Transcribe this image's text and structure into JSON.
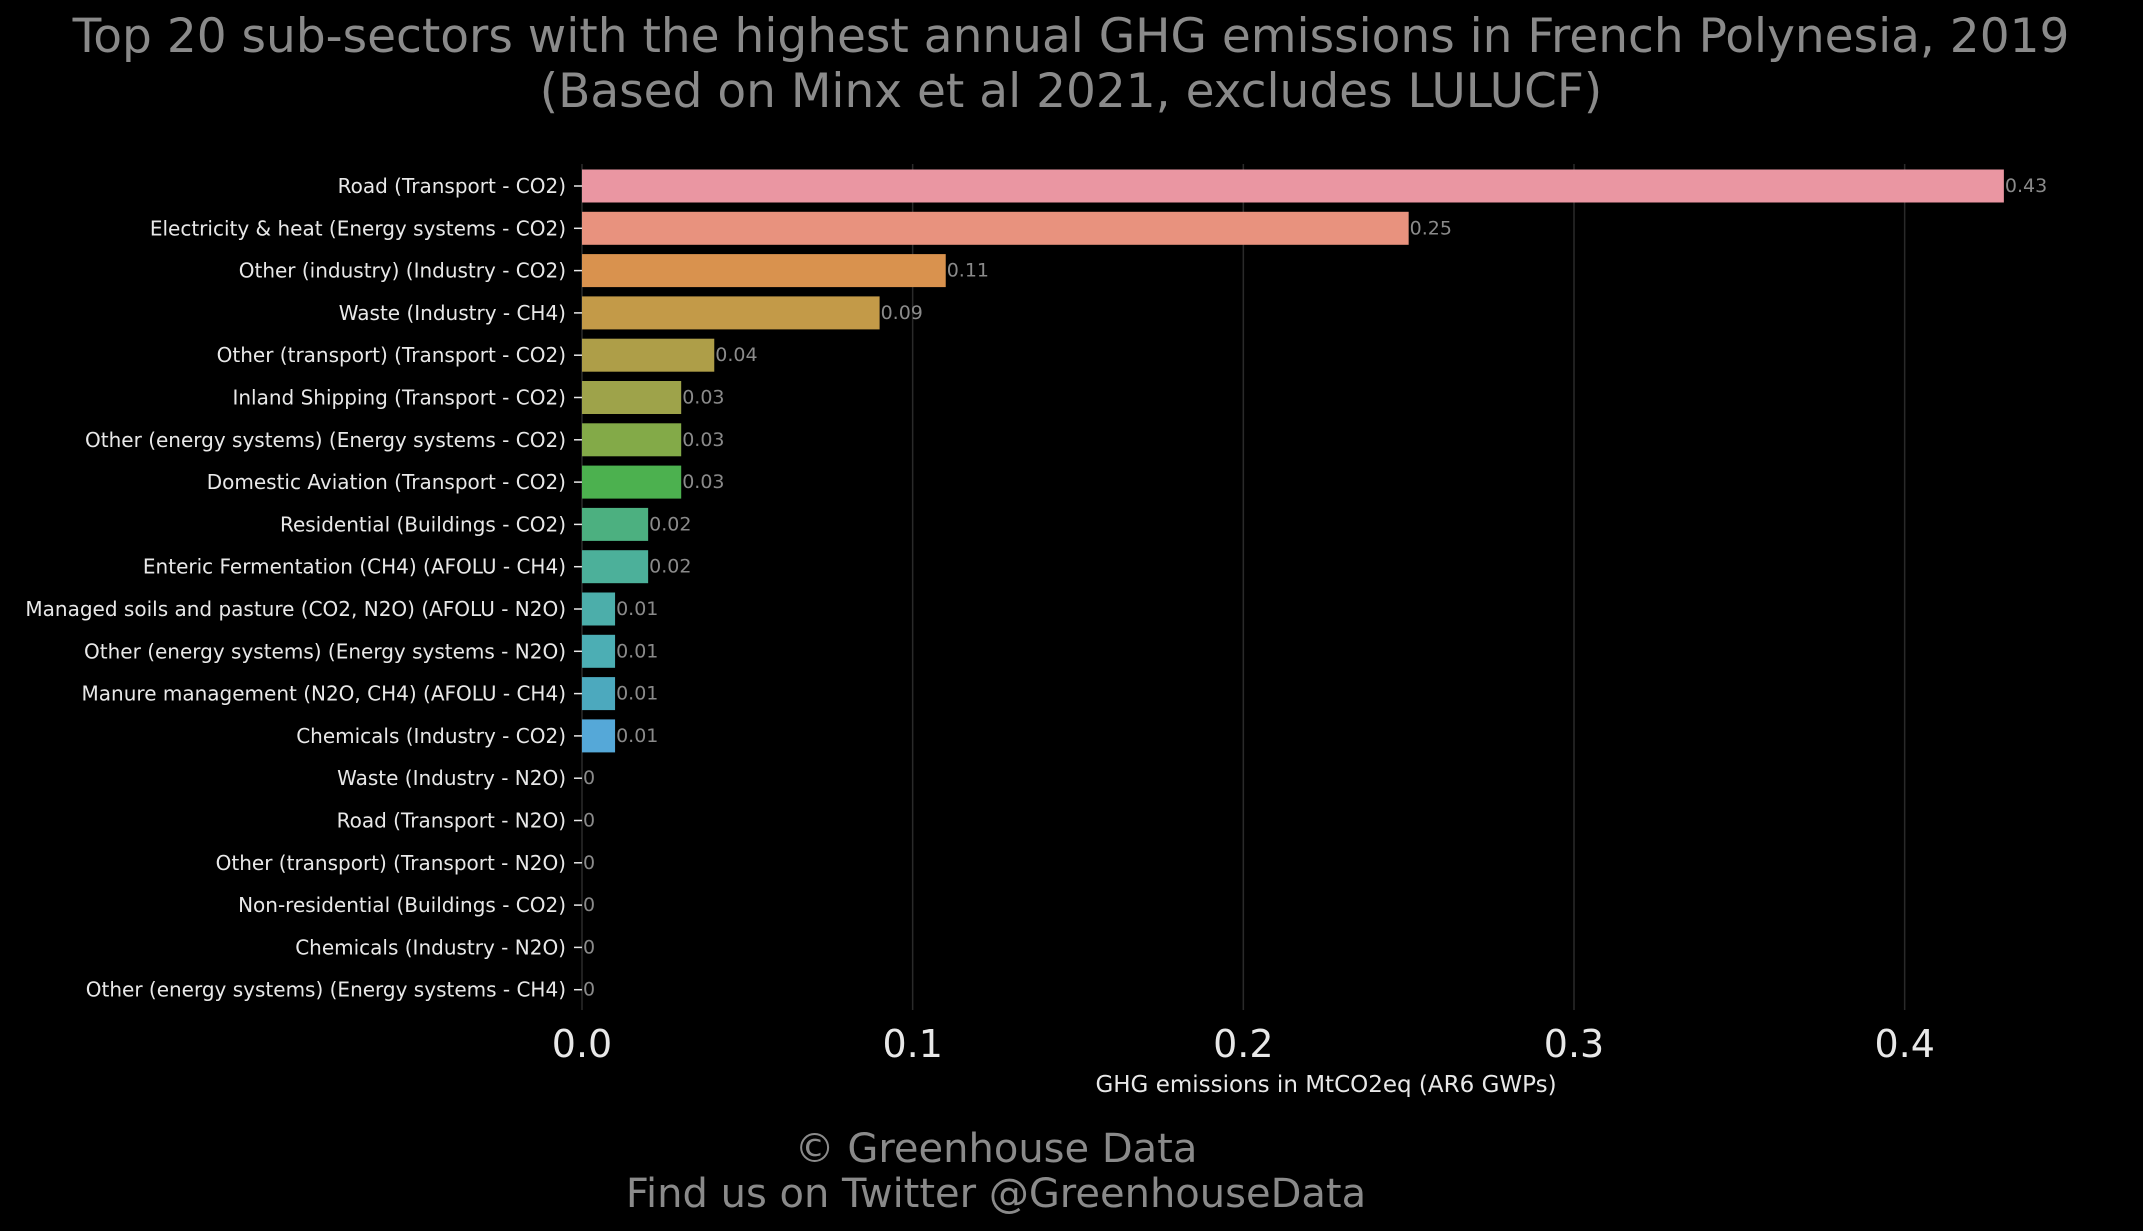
{
  "chart_data": {
    "type": "bar",
    "orientation": "horizontal",
    "title": "Top 20 sub-sectors with the highest annual GHG emissions in French Polynesia, 2019",
    "subtitle": "(Based on Minx et al 2021, excludes LULUCF)",
    "xlabel": "GHG emissions in MtCO2eq (AR6 GWPs)",
    "ylabel": "",
    "xlim": [
      0,
      0.45
    ],
    "xticks": [
      0.0,
      0.1,
      0.2,
      0.3,
      0.4
    ],
    "xtick_labels": [
      "0.0",
      "0.1",
      "0.2",
      "0.3",
      "0.4"
    ],
    "grid": "vertical",
    "categories": [
      "Road (Transport - CO2)",
      "Electricity & heat (Energy systems - CO2)",
      "Other (industry) (Industry - CO2)",
      "Waste (Industry - CH4)",
      "Other (transport) (Transport - CO2)",
      "Inland Shipping (Transport - CO2)",
      "Other (energy systems) (Energy systems - CO2)",
      "Domestic Aviation (Transport - CO2)",
      "Residential (Buildings - CO2)",
      "Enteric Fermentation (CH4) (AFOLU - CH4)",
      "Managed soils and pasture (CO2, N2O) (AFOLU - N2O)",
      "Other (energy systems) (Energy systems - N2O)",
      "Manure management (N2O, CH4) (AFOLU - CH4)",
      "Chemicals (Industry - CO2)",
      "Waste (Industry - N2O)",
      "Road (Transport - N2O)",
      "Other (transport) (Transport - N2O)",
      "Non-residential (Buildings - CO2)",
      "Chemicals (Industry - N2O)",
      "Other (energy systems) (Energy systems - CH4)"
    ],
    "values": [
      0.43,
      0.25,
      0.11,
      0.09,
      0.04,
      0.03,
      0.03,
      0.03,
      0.02,
      0.02,
      0.01,
      0.01,
      0.01,
      0.01,
      0.0,
      0.0,
      0.0,
      0.0,
      0.0,
      0.0
    ],
    "value_labels": [
      "0.43",
      "0.25",
      "0.11",
      "0.09",
      "0.04",
      "0.03",
      "0.03",
      "0.03",
      "0.02",
      "0.02",
      "0.01",
      "0.01",
      "0.01",
      "0.01",
      "0",
      "0",
      "0",
      "0",
      "0",
      "0"
    ],
    "colors": [
      "#ea96a2",
      "#e8927e",
      "#d9924e",
      "#c39a48",
      "#ae9e48",
      "#9ea34a",
      "#83aa48",
      "#4cb14f",
      "#4cb080",
      "#4cb09a",
      "#4caeaa",
      "#4caeb4",
      "#4ca9be",
      "#55a8d8",
      "#7ea0e8",
      "#9f94e8",
      "#c487e8",
      "#de80d6",
      "#e884b8",
      "#e88ca6"
    ]
  },
  "footer": {
    "line1": "© Greenhouse Data",
    "line2": "Find us on Twitter @GreenhouseData"
  },
  "colors": {
    "background": "#000000",
    "title": "#8a8a8a",
    "label": "#e8e8e8",
    "grid": "#2a2a2a"
  }
}
